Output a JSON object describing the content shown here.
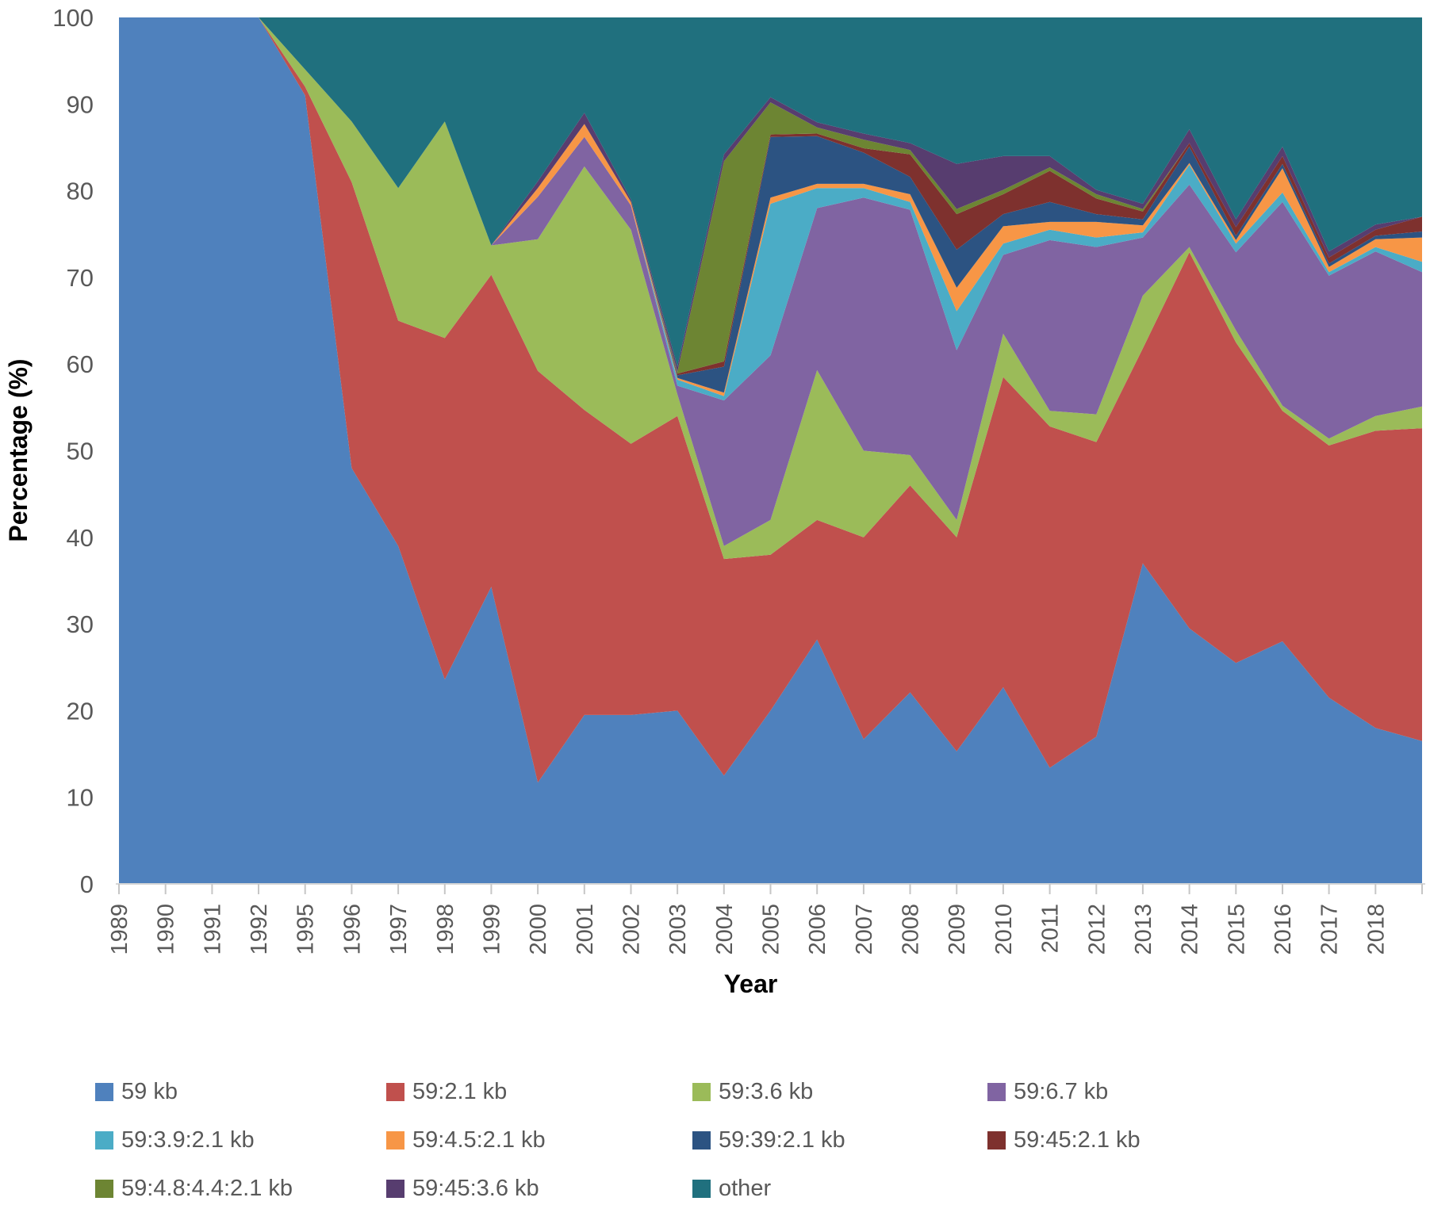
{
  "chart_data": {
    "type": "area",
    "stacked": true,
    "units": "percent",
    "xlabel": "Year",
    "ylabel": "Percentage (%)",
    "ylim": [
      0,
      100
    ],
    "ytick_step": 10,
    "grid": "off",
    "legend_position": "bottom",
    "axis_text_color": "#595959",
    "axis_title_color": "#000000",
    "tick_color": "#c6c6c6",
    "axis_line_color": "#d6d6d6",
    "categories": [
      "1989",
      "1990",
      "1991",
      "1992",
      "1995",
      "1996",
      "1997",
      "1998",
      "1999",
      "2000",
      "2001",
      "2002",
      "2003",
      "2004",
      "2005",
      "2006",
      "2007",
      "2008",
      "2009",
      "2010",
      "2011",
      "2012",
      "2013",
      "2014",
      "2015",
      "2016",
      "2017",
      "2018",
      ""
    ],
    "series": [
      {
        "name": "59 kb",
        "color": "#4F81BD",
        "values": [
          100,
          100,
          100,
          100,
          91,
          48,
          39,
          23.6,
          34.3,
          11.7,
          19.5,
          19.5,
          20,
          12.5,
          20,
          28.2,
          16.7,
          22.1,
          15.3,
          22.7,
          13.4,
          17,
          37,
          29.5,
          25.5,
          28,
          21.5,
          18,
          16.5
        ]
      },
      {
        "name": "59:2.1 kb",
        "color": "#C0504D",
        "values": [
          0,
          0,
          0,
          0,
          1,
          33,
          26,
          39.4,
          36,
          47.5,
          35.2,
          31.3,
          34,
          25,
          18,
          13.8,
          23.3,
          23.9,
          24.7,
          35.8,
          39.4,
          34,
          24.8,
          43.4,
          37,
          26.6,
          29.1,
          34.3,
          36.1
        ]
      },
      {
        "name": "59:3.6 kb",
        "color": "#9BBB59",
        "values": [
          0,
          0,
          0,
          0,
          2,
          7,
          15.3,
          25,
          3.4,
          15.2,
          28.1,
          24.7,
          2.5,
          1.5,
          4,
          17.3,
          10,
          3.5,
          2,
          5,
          1.8,
          3.2,
          6.1,
          0.6,
          1.4,
          0.6,
          0.8,
          1.7,
          2.5
        ]
      },
      {
        "name": "59:6.7 kb",
        "color": "#8064A2",
        "values": [
          0,
          0,
          0,
          0,
          0,
          0,
          0,
          0,
          0,
          4.9,
          3.4,
          2.8,
          1,
          16.8,
          19,
          18.7,
          29.2,
          28.3,
          19.6,
          9.1,
          19.7,
          19.3,
          6.7,
          7.2,
          9,
          23.5,
          18.8,
          19,
          15.5
        ]
      },
      {
        "name": "59:3.9:2.1 kb",
        "color": "#4BACC6",
        "values": [
          0,
          0,
          0,
          0,
          0,
          0,
          0,
          0,
          0,
          0,
          0,
          0,
          0.7,
          0.5,
          17.5,
          2.3,
          1.1,
          0.9,
          4.5,
          1.3,
          1.2,
          1.1,
          0.6,
          2.3,
          1,
          1.1,
          0.4,
          0.5,
          1.2
        ]
      },
      {
        "name": "59:4.5:2.1 kb",
        "color": "#F79646",
        "values": [
          0,
          0,
          0,
          0,
          0,
          0,
          0,
          0,
          0,
          1,
          1.5,
          0.4,
          0.2,
          0.4,
          0.7,
          0.5,
          0.5,
          0.9,
          2.7,
          2,
          0.9,
          1.8,
          0.8,
          0.2,
          0.4,
          2.8,
          0.6,
          0.9,
          2.8
        ]
      },
      {
        "name": "59:39:2.1 kb",
        "color": "#2C5382",
        "values": [
          0,
          0,
          0,
          0,
          0,
          0,
          0,
          0,
          0,
          0,
          0,
          0,
          0.3,
          3,
          7,
          5.5,
          3.6,
          2,
          4.4,
          1.4,
          2.3,
          0.9,
          0.7,
          1.9,
          0.5,
          0.5,
          0.4,
          0.4,
          0.7
        ]
      },
      {
        "name": "59:45:2.1 kb",
        "color": "#7E312E",
        "values": [
          0,
          0,
          0,
          0,
          0,
          0,
          0,
          0,
          0,
          0,
          0,
          0,
          0.2,
          0.6,
          0.3,
          0.3,
          0.5,
          2.6,
          4.1,
          2.3,
          3.6,
          1.8,
          0.9,
          0.4,
          1,
          0.9,
          0.7,
          0.7,
          1.7
        ]
      },
      {
        "name": "59:4.8:4.4:2.1 kb",
        "color": "#6D8533",
        "values": [
          0,
          0,
          0,
          0,
          0,
          0,
          0,
          0,
          0,
          0,
          0,
          0,
          0.2,
          23.1,
          3.7,
          0.7,
          1,
          0.5,
          0.6,
          0.5,
          0.4,
          0.5,
          0.3,
          0,
          0,
          0,
          0,
          0,
          0
        ]
      },
      {
        "name": "59:45:3.6 kb",
        "color": "#573D6F",
        "values": [
          0,
          0,
          0,
          0,
          0,
          0,
          0,
          0,
          0,
          0.8,
          1.3,
          0.3,
          0.6,
          0.8,
          0.6,
          0.6,
          0.7,
          0.8,
          5.2,
          3.9,
          1.3,
          0.5,
          0.6,
          1.6,
          0.9,
          1.1,
          0.7,
          0.6,
          0
        ]
      },
      {
        "name": "other",
        "color": "#20707E",
        "values": [
          0,
          0,
          0,
          0,
          6,
          12,
          19.7,
          12,
          26.3,
          18.9,
          11,
          21,
          40.3,
          15.8,
          9.2,
          12.1,
          13.4,
          14.5,
          16.9,
          16,
          16,
          19.9,
          21.5,
          12.9,
          23.3,
          14.9,
          27,
          23.9,
          23
        ]
      }
    ]
  }
}
